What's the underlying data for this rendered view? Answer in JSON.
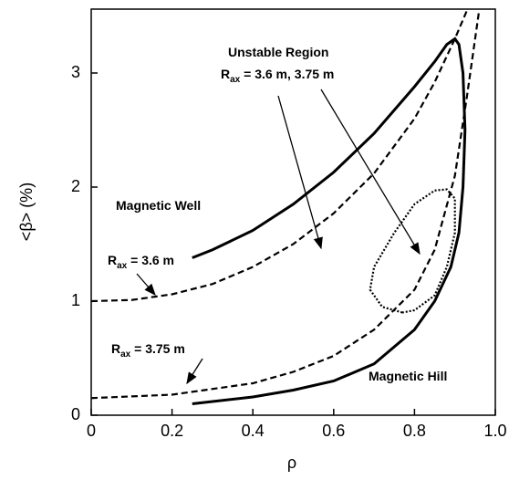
{
  "chart_data": {
    "type": "line",
    "xlabel": "ρ",
    "ylabel": "<β> (%)",
    "xlim": [
      0,
      1
    ],
    "ylim": [
      0,
      3.56
    ],
    "xticks": [
      0,
      0.2,
      0.4,
      0.6,
      0.8,
      {
        "value": 1,
        "label": "1.0"
      }
    ],
    "yticks": [
      0,
      1,
      2,
      3
    ],
    "series": [
      {
        "style": "solid",
        "color": "#000000",
        "x": [
          0.25,
          0.3,
          0.4,
          0.5,
          0.6,
          0.7,
          0.8,
          0.85,
          0.88,
          0.9,
          0.91,
          0.92,
          0.925,
          0.92,
          0.91,
          0.89,
          0.85,
          0.8,
          0.7,
          0.6,
          0.5,
          0.4,
          0.3,
          0.25
        ],
        "values": [
          1.38,
          1.45,
          1.62,
          1.85,
          2.13,
          2.47,
          2.88,
          3.1,
          3.25,
          3.3,
          3.25,
          3.0,
          2.5,
          2.0,
          1.6,
          1.3,
          1.0,
          0.75,
          0.45,
          0.3,
          0.22,
          0.16,
          0.12,
          0.1
        ]
      },
      {
        "style": "dashed",
        "color": "#000000",
        "x": [
          0,
          0.1,
          0.2,
          0.3,
          0.4,
          0.5,
          0.6,
          0.7,
          0.8,
          0.85,
          0.9,
          0.93
        ],
        "values": [
          1.0,
          1.01,
          1.06,
          1.15,
          1.3,
          1.5,
          1.77,
          2.12,
          2.6,
          2.92,
          3.3,
          3.55
        ]
      },
      {
        "style": "dashed",
        "color": "#000000",
        "x": [
          0,
          0.2,
          0.4,
          0.5,
          0.6,
          0.7,
          0.8,
          0.85,
          0.9,
          0.93,
          0.95,
          0.96
        ],
        "values": [
          0.15,
          0.18,
          0.28,
          0.38,
          0.52,
          0.75,
          1.1,
          1.45,
          2.1,
          2.8,
          3.3,
          3.55
        ]
      },
      {
        "style": "dotted",
        "color": "#000000",
        "x": [
          0.77,
          0.72,
          0.69,
          0.7,
          0.75,
          0.8,
          0.85,
          0.88,
          0.9,
          0.9,
          0.88,
          0.85,
          0.8,
          0.77
        ],
        "values": [
          0.9,
          0.95,
          1.1,
          1.3,
          1.6,
          1.85,
          1.97,
          1.98,
          1.9,
          1.6,
          1.3,
          1.05,
          0.92,
          0.9
        ]
      }
    ],
    "annotations": [
      {
        "text": "Unstable Region"
      },
      {
        "text": "R",
        "sub": "ax",
        "rest": " = 3.6 m, 3.75 m"
      },
      {
        "text": "Magnetic Well"
      },
      {
        "text": "R",
        "sub": "ax",
        "rest": " = 3.6 m"
      },
      {
        "text": "R",
        "sub": "ax",
        "rest": " = 3.75 m"
      },
      {
        "text": "Magnetic Hill"
      }
    ]
  }
}
